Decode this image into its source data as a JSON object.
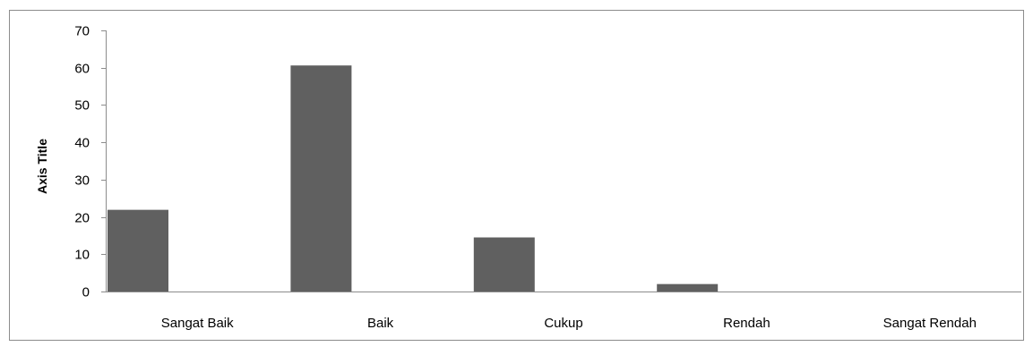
{
  "chart_data": {
    "type": "bar",
    "title": "",
    "xlabel": "",
    "ylabel": "Axis Title",
    "categories": [
      "Sangat Baik",
      "Baik",
      "Cukup",
      "Rendah",
      "Sangat Rendah"
    ],
    "series": [
      {
        "values": [
          21.9,
          60.6,
          14.5,
          2.0,
          0
        ],
        "color": "#606060"
      }
    ],
    "ylim": [
      0,
      70
    ],
    "yticks": [
      0,
      10,
      20,
      30,
      40,
      50,
      60,
      70
    ],
    "grid": false,
    "legend": "none"
  }
}
